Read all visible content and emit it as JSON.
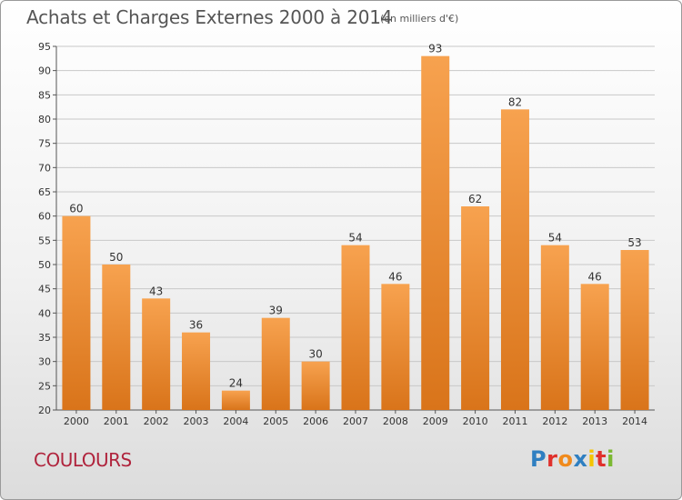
{
  "header": {
    "title": "Achats et Charges Externes 2000 à 2014",
    "unit": "(en milliers d'€)"
  },
  "footer": {
    "commune": "COULOURS",
    "logo": {
      "letters": [
        "P",
        "r",
        "o",
        "x",
        "i",
        "t",
        "i"
      ],
      "colors": [
        "#2f7fc1",
        "#e0302c",
        "#f08a1c",
        "#2f7fc1",
        "#f5c400",
        "#e0302c",
        "#7bb832"
      ]
    }
  },
  "colors": {
    "bar_top": "#f7a24f",
    "bar_bottom": "#d9741a",
    "grid": "#c8c8c8",
    "axis": "#555555"
  },
  "chart_data": {
    "type": "bar",
    "title": "Achats et Charges Externes 2000 à 2014",
    "subtitle": "(en milliers d'€)",
    "xlabel": "",
    "ylabel": "",
    "categories": [
      "2000",
      "2001",
      "2002",
      "2003",
      "2004",
      "2005",
      "2006",
      "2007",
      "2008",
      "2009",
      "2010",
      "2011",
      "2012",
      "2013",
      "2014"
    ],
    "values": [
      60,
      50,
      43,
      36,
      24,
      39,
      30,
      54,
      46,
      93,
      62,
      82,
      54,
      46,
      53
    ],
    "ylim": [
      20,
      95
    ],
    "yticks": [
      20,
      25,
      30,
      35,
      40,
      45,
      50,
      55,
      60,
      65,
      70,
      75,
      80,
      85,
      90,
      95
    ],
    "grid": true,
    "data_labels": true
  }
}
